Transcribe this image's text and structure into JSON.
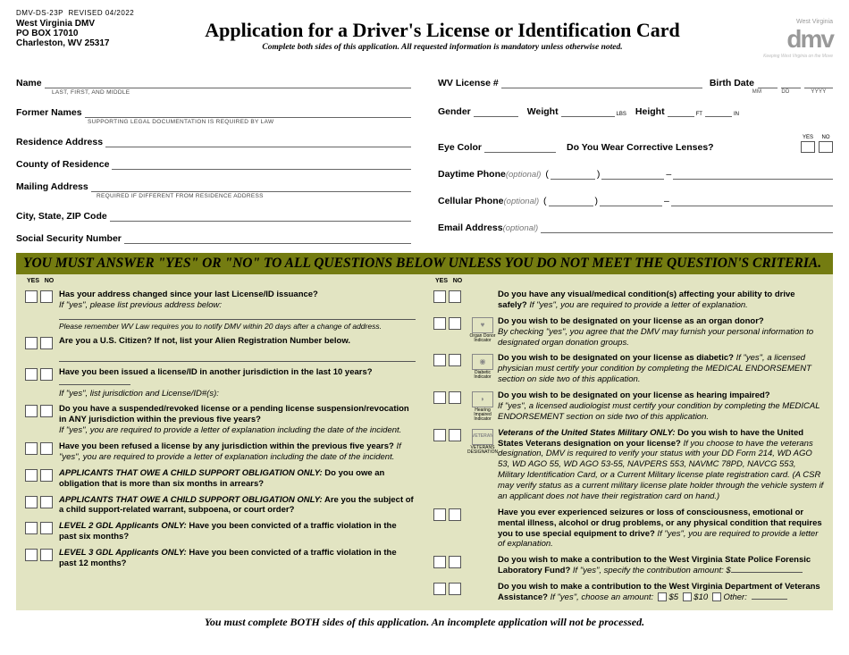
{
  "form_id": "DMV-DS-23P",
  "revised": "REVISED 04/2022",
  "agency": {
    "name": "West Virginia DMV",
    "po": "PO BOX 17010",
    "city": "Charleston, WV  25317"
  },
  "title": "Application for a Driver's License or Identification Card",
  "subtitle": "Complete both sides of this application.  All requested information is mandatory unless otherwise noted.",
  "logo": {
    "state": "West Virginia",
    "mark": "dmv",
    "tag": "Keeping West Virginia on the Move"
  },
  "left_fields": {
    "name": "Name",
    "name_sub": "LAST, FIRST, AND MIDDLE",
    "former": "Former Names",
    "former_sub": "SUPPORTING LEGAL DOCUMENTATION IS REQUIRED BY LAW",
    "res": "Residence Address",
    "county": "County of Residence",
    "mail": "Mailing Address",
    "mail_sub": "REQUIRED IF DIFFERENT FROM RESIDENCE ADDRESS",
    "csz": "City, State, ZIP Code",
    "ssn": "Social Security Number"
  },
  "right_fields": {
    "lic": "WV License #",
    "bd": "Birth Date",
    "mm": "MM",
    "dd": "DD",
    "yyyy": "YYYY",
    "gender": "Gender",
    "weight": "Weight",
    "lbs": "LBS",
    "height": "Height",
    "ft": "FT",
    "in": "IN",
    "eye": "Eye Color",
    "lenses": "Do You Wear Corrective Lenses?",
    "yes": "YES",
    "no": "NO",
    "day": "Daytime Phone",
    "cell": "Cellular Phone",
    "opt": " (optional)",
    "email": "Email Address"
  },
  "banner": "YOU MUST ANSWER \"YES\" OR \"NO\" TO ALL QUESTIONS BELOW UNLESS YOU DO NOT MEET THE QUESTION'S CRITERIA.",
  "yn": {
    "y": "YES",
    "n": "NO"
  },
  "ql": [
    {
      "b": "Has your address changed since your last License/ID issuance?",
      "i": "If \"yes\", please list previous address below:",
      "line": true,
      "note": "Please remember WV Law requires you to notify DMV within 20 days after a change of address."
    },
    {
      "b": "Are you a U.S. Citizen? If not, list your Alien Registration Number below.",
      "line2": true
    },
    {
      "b": "Have you been issued a license/ID in another jurisdiction in the last 10 years?",
      "i": "If \"yes\", list jurisdiction and License/ID#(s):",
      "inline_line": true
    },
    {
      "b": "Do you have a suspended/revoked license or a pending license suspension/revocation in ANY jurisdiction within the previous five years?",
      "i": "If \"yes\", you are required to provide a letter of explanation including the date of the incident."
    },
    {
      "b": "Have you been refused a license by any jurisdiction within the previous five years?",
      "i2": " If \"yes\", you are required to provide a letter of explanation including the date of the incident."
    },
    {
      "pre": "APPLICANTS THAT OWE A CHILD SUPPORT OBLIGATION ONLY:",
      "b2": "  Do you owe an obligation that is more than six months in arrears?"
    },
    {
      "pre": "APPLICANTS THAT OWE A CHILD SUPPORT OBLIGATION ONLY:",
      "b2": "  Are you the subject of a child support-related warrant, subpoena, or court order?"
    },
    {
      "pre": "LEVEL 2 GDL Applicants ONLY:",
      "b2": "  Have you been convicted of a traffic violation in the past six months?"
    },
    {
      "pre": "LEVEL 3 GDL Applicants ONLY:",
      "b2": "  Have you been convicted of a traffic violation in the past 12 months?"
    }
  ],
  "qr": [
    {
      "b": "Do you have any visual/medical condition(s) affecting your ability to drive safely?",
      "i2": "  If \"yes\", you are required to provide a letter of explanation."
    },
    {
      "ind": "Organ Donor Indicator",
      "glyph": "♥",
      "b": "Do you wish to be designated on your license as an organ donor?",
      "i": "By checking \"yes\", you agree that the DMV may furnish your personal information to designated organ donation groups."
    },
    {
      "ind": "Diabetic Indicator",
      "glyph": "◉",
      "b": "Do you wish to be designated on your license as diabetic?",
      "i2": "   If \"yes\", a licensed physician must certify your condition by completing the MEDICAL ENDORSEMENT section on side two of this application."
    },
    {
      "ind": "Hearing Impaired Indicator",
      "glyph": "◗",
      "b": "Do you wish to be designated on your license as hearing impaired?",
      "i": "If \"yes\", a licensed audiologist must certify your condition by completing the MEDICAL ENDORSEMENT section on side two of this application."
    },
    {
      "ind": "VETERANS DESIGNATION",
      "glyph_txt": "VETERAN",
      "pre": "Veterans of the United States Military ONLY:",
      "b2": "  Do you wish to have the United States Veterans designation on your license?",
      "i2": " If you choose to have the veterans designation, DMV is required to verify your status with your DD Form 214, WD AGO 53, WD AGO 55, WD AGO 53-55, NAVPERS 553, NAVMC 78PD, NAVCG 553, Military Identification Card, or a Current Military license plate registration card. (A CSR may verify status as a current military license plate holder through the vehicle system if an applicant does not have their registration card on hand.)"
    },
    {
      "b": "Have you ever experienced seizures or loss of consciousness, emotional or mental illness, alcohol or drug problems, or any physical condition that requires you to use special equipment to drive?",
      "i2": " If \"yes\", you are required to provide a letter of explanation."
    },
    {
      "b": "Do you wish to make a contribution to the West Virginia State Police Forensic Laboratory Fund?",
      "i2": "  If \"yes\", specify the contribution amount: $",
      "inline_line": true
    },
    {
      "b": "Do you wish to make a contribution to the West Virginia Department of Veterans Assistance?",
      "i2": " If \"yes\", choose an amount:",
      "opts": [
        "$5",
        "$10",
        "Other:"
      ]
    }
  ],
  "footer": "You must complete BOTH sides of this application.  An incomplete application will not be processed."
}
